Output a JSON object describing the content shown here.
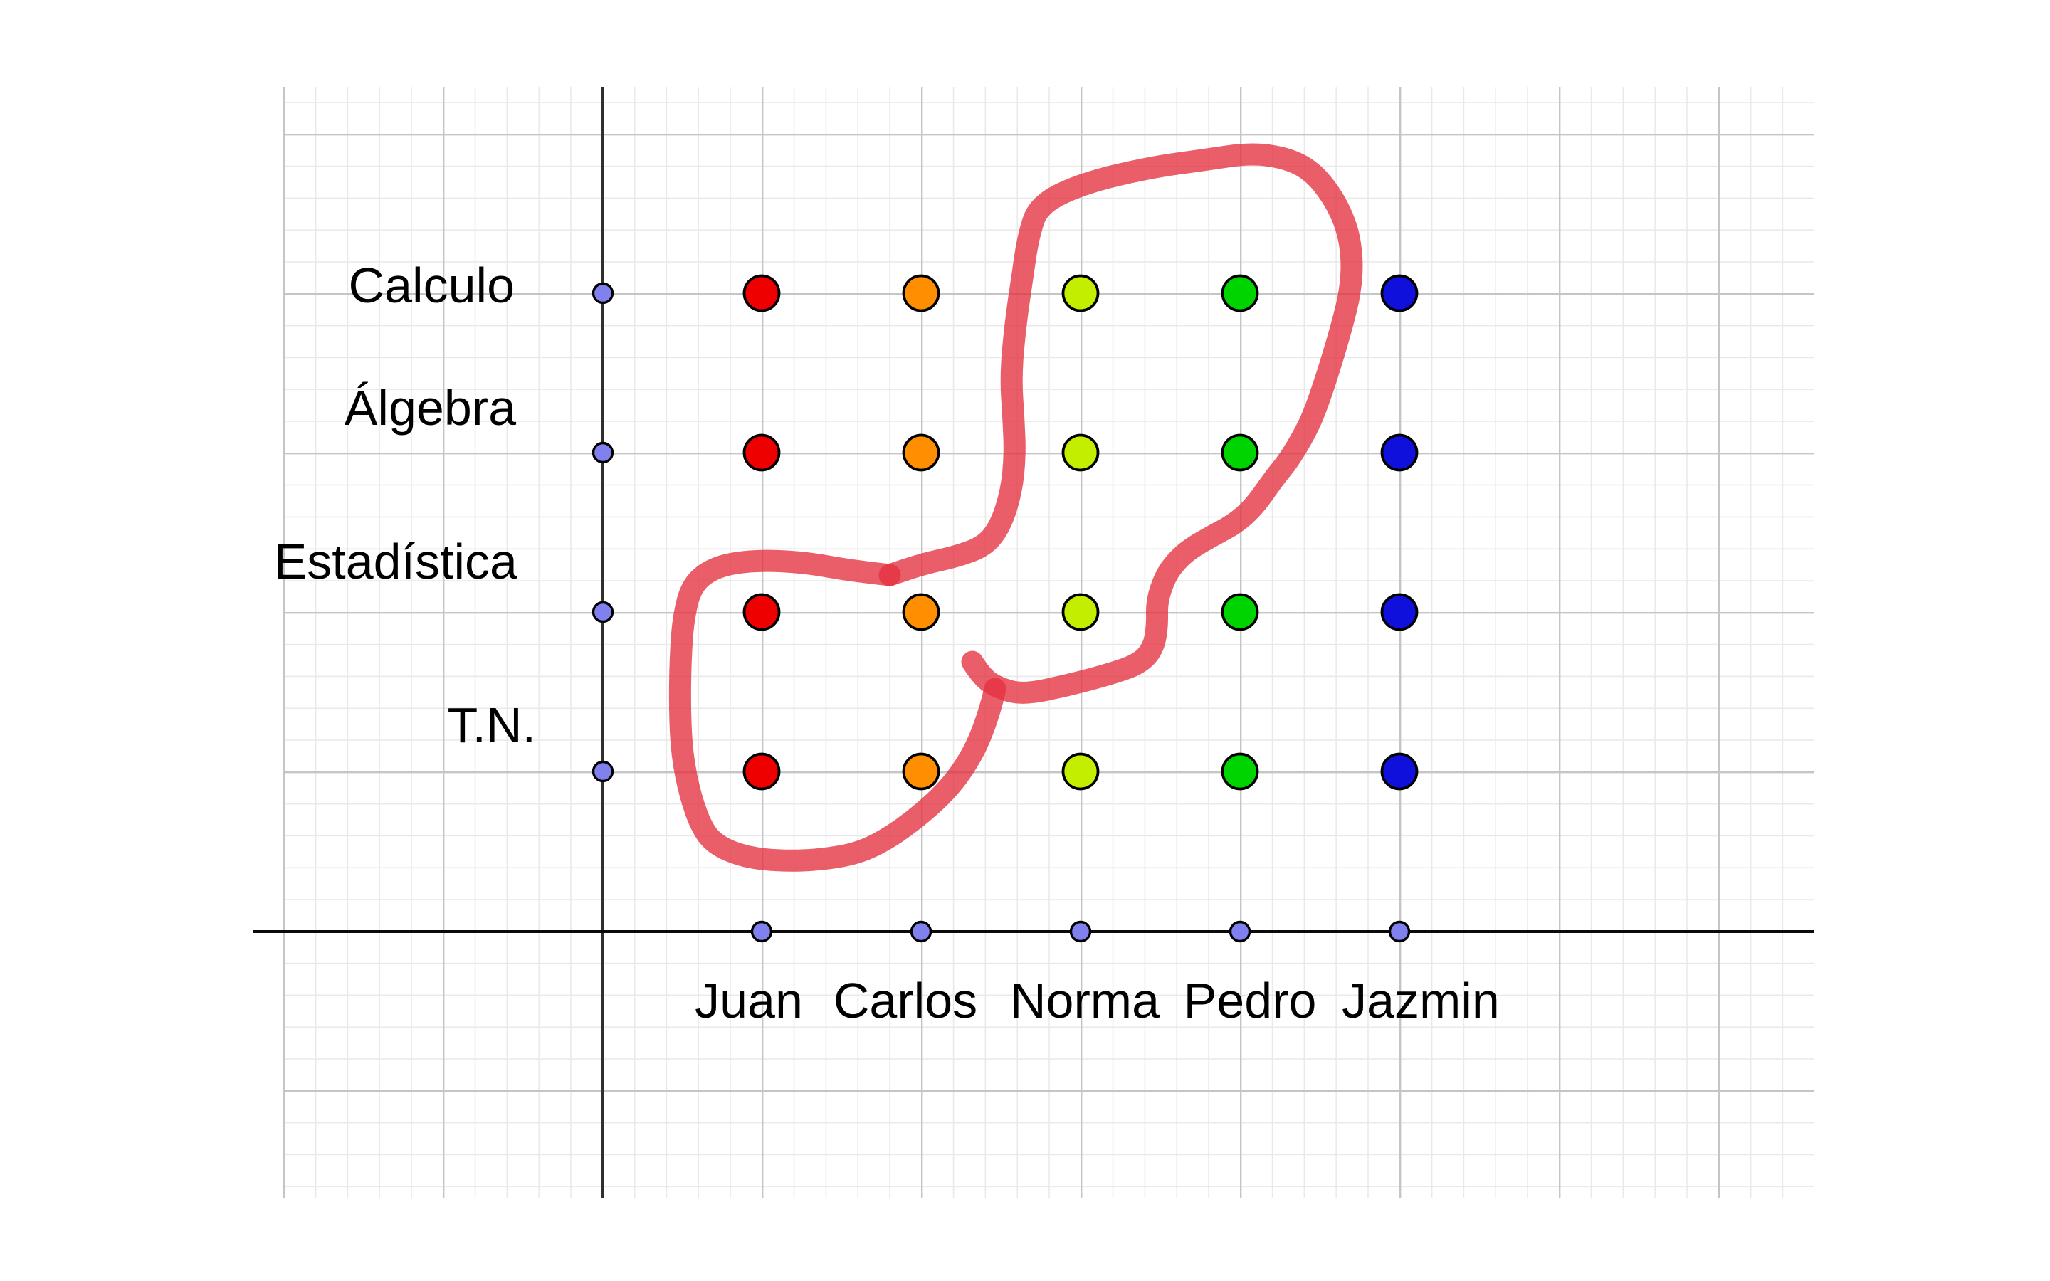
{
  "figure": {
    "row_labels": [
      {
        "label": "Calculo"
      },
      {
        "label": "Álgebra"
      },
      {
        "label": "Estadística"
      },
      {
        "label": "T.N."
      }
    ],
    "columns": [
      {
        "name": "Juan",
        "color": "#ee0000"
      },
      {
        "name": "Carlos",
        "color": "#ff8e00"
      },
      {
        "name": "Norma",
        "color": "#c3ee00"
      },
      {
        "name": "Pedro",
        "color": "#00d400"
      },
      {
        "name": "Jazmin",
        "color": "#1010dd"
      }
    ],
    "axis_point_color": "#8080ee",
    "pen": {
      "color": "#e43140"
    }
  },
  "chart_data": {
    "type": "scatter",
    "title": "",
    "xlabel": "",
    "ylabel": "",
    "x_categories": [
      "Juan",
      "Carlos",
      "Norma",
      "Pedro",
      "Jazmin"
    ],
    "y_categories": [
      "T.N.",
      "Estadística",
      "Álgebra",
      "Calculo"
    ],
    "grid": true,
    "legend": false,
    "points": [
      {
        "x": "Juan",
        "y": "Calculo",
        "color": "#ee0000",
        "circled": false
      },
      {
        "x": "Juan",
        "y": "Álgebra",
        "color": "#ee0000",
        "circled": false
      },
      {
        "x": "Juan",
        "y": "Estadística",
        "color": "#ee0000",
        "circled": true
      },
      {
        "x": "Juan",
        "y": "T.N.",
        "color": "#ee0000",
        "circled": true
      },
      {
        "x": "Carlos",
        "y": "Calculo",
        "color": "#ff8e00",
        "circled": false
      },
      {
        "x": "Carlos",
        "y": "Álgebra",
        "color": "#ff8e00",
        "circled": false
      },
      {
        "x": "Carlos",
        "y": "Estadística",
        "color": "#ff8e00",
        "circled": true
      },
      {
        "x": "Carlos",
        "y": "T.N.",
        "color": "#ff8e00",
        "circled": true
      },
      {
        "x": "Norma",
        "y": "Calculo",
        "color": "#c3ee00",
        "circled": true
      },
      {
        "x": "Norma",
        "y": "Álgebra",
        "color": "#c3ee00",
        "circled": true
      },
      {
        "x": "Norma",
        "y": "Estadística",
        "color": "#c3ee00",
        "circled": false
      },
      {
        "x": "Norma",
        "y": "T.N.",
        "color": "#c3ee00",
        "circled": false
      },
      {
        "x": "Pedro",
        "y": "Calculo",
        "color": "#00d400",
        "circled": true
      },
      {
        "x": "Pedro",
        "y": "Álgebra",
        "color": "#00d400",
        "circled": true
      },
      {
        "x": "Pedro",
        "y": "Estadística",
        "color": "#00d400",
        "circled": false
      },
      {
        "x": "Pedro",
        "y": "T.N.",
        "color": "#00d400",
        "circled": false
      },
      {
        "x": "Jazmin",
        "y": "Calculo",
        "color": "#1010dd",
        "circled": false
      },
      {
        "x": "Jazmin",
        "y": "Álgebra",
        "color": "#1010dd",
        "circled": false
      },
      {
        "x": "Jazmin",
        "y": "Estadística",
        "color": "#1010dd",
        "circled": false
      },
      {
        "x": "Jazmin",
        "y": "T.N.",
        "color": "#1010dd",
        "circled": false
      }
    ],
    "axis_marker_points": {
      "x_axis": [
        "Juan",
        "Carlos",
        "Norma",
        "Pedro",
        "Jazmin"
      ],
      "y_axis": [
        "Calculo",
        "Álgebra",
        "Estadística",
        "T.N."
      ]
    },
    "annotation": "Hand-drawn red pen loop encircling the Norma and Pedro points of Calculo and Álgebra, and the Juan and Carlos points of Estadística and T.N."
  }
}
